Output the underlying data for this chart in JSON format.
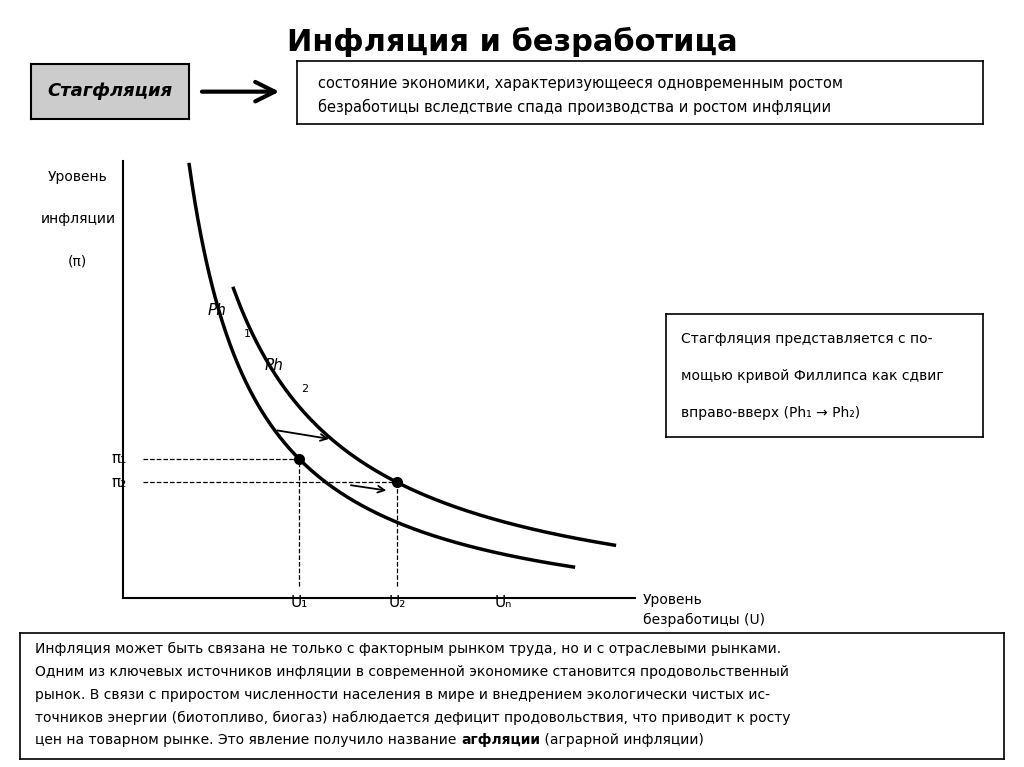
{
  "title": "Инфляция и безработица",
  "stagflation_label": "Стагфляция",
  "stagflation_def_line1": "состояние экономики, характеризующееся одновременным ростом",
  "stagflation_def_line2": "безработицы вследствие спада производства и ростом инфляции",
  "ylabel_line1": "Уровень",
  "ylabel_line2": "инфляции",
  "ylabel_line3": "(π)",
  "xlabel_line1": "Уровень",
  "xlabel_line2": "безработицы (U)",
  "curve1_label": "Ph",
  "curve1_sub": "1",
  "curve2_label": "Ph",
  "curve2_sub": "2",
  "pi1_label": "π₁",
  "pi2_label": "π₂",
  "u1_label": "U₁",
  "u2_label": "U₂",
  "un_label": "Uₙ",
  "note_line1": "Стагфляция представляется с по-",
  "note_line2": "мощью кривой Филлипса как сдвиг",
  "note_line3": "вправо-вверх (Ph₁ → Ph₂)",
  "bottom_lines": [
    "Инфляция может быть связана не только с факторным рынком труда, но и с отраслевыми рынками.",
    "Одним из ключевых источников инфляции в современной экономике становится продовольственный",
    "рынок. В связи с приростом численности населения в мире и внедрением экологически чистых ис-",
    "точников энергии (биотопливо, биогаз) наблюдается дефицит продовольствия, что приводит к росту",
    "цен на товарном рынке. Это явление получило название агфляции (аграрной инфляции)"
  ],
  "bottom_bold_start": "агфляции",
  "bg_color": "#ffffff",
  "curve_color": "#000000",
  "text_color": "#000000"
}
